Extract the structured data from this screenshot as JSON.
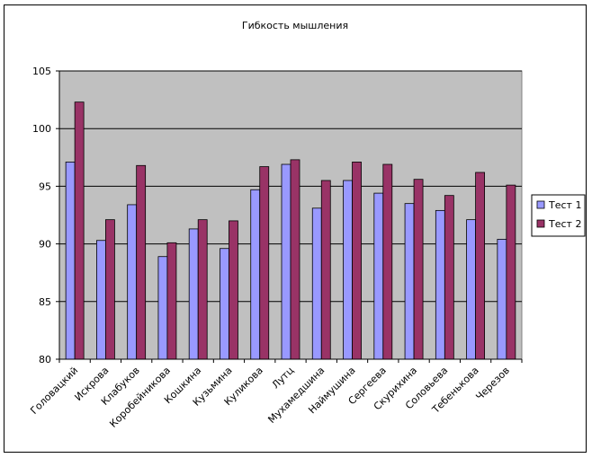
{
  "chart_data": {
    "type": "bar",
    "title": "Гибкость мышления",
    "xlabel": "",
    "ylabel": "",
    "ylim": [
      80,
      105
    ],
    "yticks": [
      80,
      85,
      90,
      95,
      100,
      105
    ],
    "grid": true,
    "legend_position": "right",
    "plot_background": "#c0c0c0",
    "categories": [
      "Головацкий",
      "Искрова",
      "Клабуков",
      "Коробейникова",
      "Кошкина",
      "Кузьмина",
      "Куликова",
      "Лутц",
      "Мухамедшина",
      "Наймушина",
      "Сергеева",
      "Скурихина",
      "Соловьева",
      "Тебенькова",
      "Черезов"
    ],
    "series": [
      {
        "name": "Тест 1",
        "color": "#9999ff",
        "values": [
          97.1,
          90.3,
          93.4,
          88.9,
          91.3,
          89.6,
          94.7,
          96.9,
          93.1,
          95.5,
          94.4,
          93.5,
          92.9,
          92.1,
          90.4
        ]
      },
      {
        "name": "Тест 2",
        "color": "#993366",
        "values": [
          102.3,
          92.1,
          96.8,
          90.1,
          92.1,
          92.0,
          96.7,
          97.3,
          95.5,
          97.1,
          96.9,
          95.6,
          94.2,
          96.2,
          95.1
        ]
      }
    ]
  }
}
